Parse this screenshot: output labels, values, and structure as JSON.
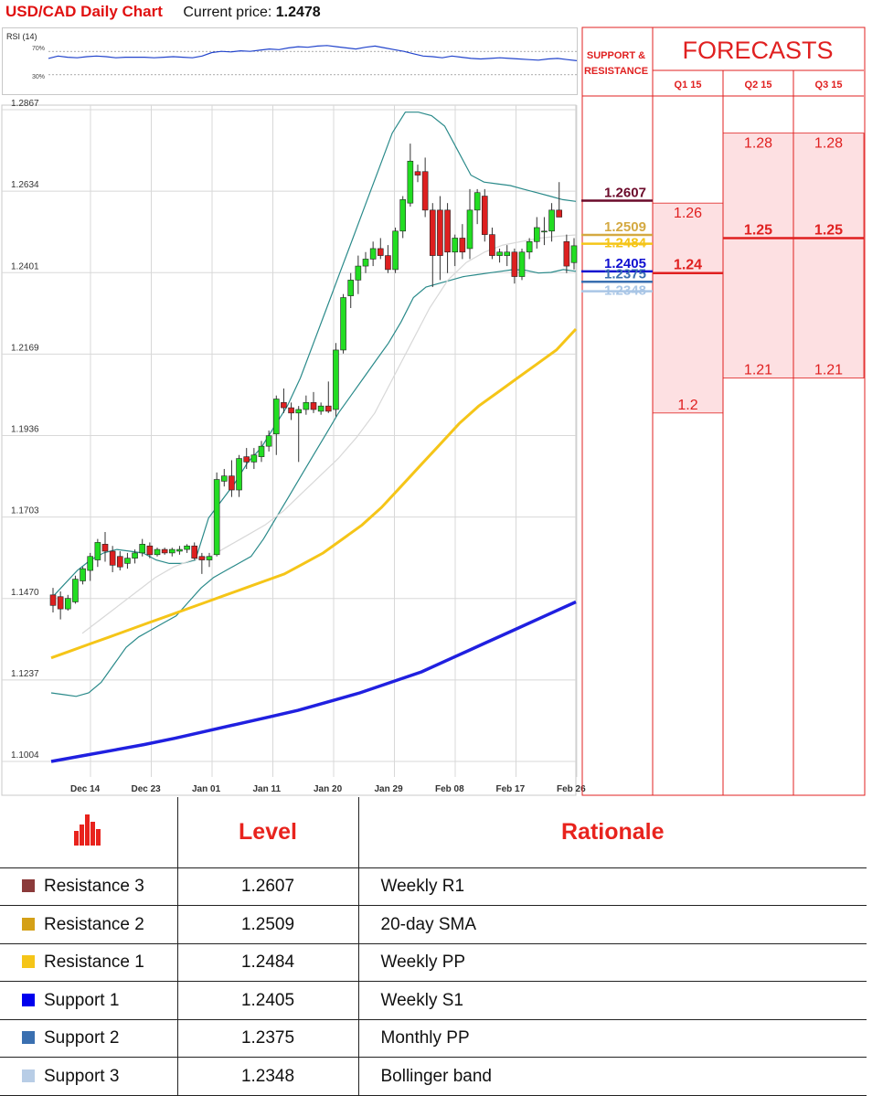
{
  "header": {
    "title": "USD/CAD Daily Chart",
    "price_label": "Current price:",
    "price_value": "1.2478"
  },
  "rsi": {
    "label": "RSI (14)",
    "level_high": "70%",
    "level_low": "30%",
    "values": [
      58,
      62,
      60,
      59,
      61,
      62,
      61,
      59,
      60,
      60,
      60,
      59,
      60,
      61,
      60,
      59,
      62,
      68,
      70,
      69,
      71,
      70,
      72,
      74,
      73,
      76,
      78,
      77,
      79,
      80,
      78,
      76,
      74,
      77,
      79,
      76,
      73,
      70,
      66,
      62,
      61,
      59,
      62,
      60,
      58,
      57,
      58,
      59,
      58,
      57,
      56,
      55,
      57,
      58,
      56,
      54
    ]
  },
  "chart_data": {
    "type": "candlestick",
    "title": "USD/CAD Daily Chart",
    "ylim": [
      1.1004,
      1.2867
    ],
    "y_ticks": [
      "1.2867",
      "1.2634",
      "1.2401",
      "1.2169",
      "1.1936",
      "1.1703",
      "1.1470",
      "1.1237",
      "1.1004"
    ],
    "x_ticks": [
      "Dec 14",
      "Dec 23",
      "Jan 01",
      "Jan 11",
      "Jan 20",
      "Jan 29",
      "Feb 08",
      "Feb 17",
      "Feb 26"
    ],
    "candles": [
      {
        "o": 1.148,
        "h": 1.15,
        "l": 1.143,
        "c": 1.145
      },
      {
        "o": 1.1475,
        "h": 1.149,
        "l": 1.141,
        "c": 1.144
      },
      {
        "o": 1.144,
        "h": 1.148,
        "l": 1.1435,
        "c": 1.147
      },
      {
        "o": 1.146,
        "h": 1.1535,
        "l": 1.1455,
        "c": 1.1525
      },
      {
        "o": 1.152,
        "h": 1.156,
        "l": 1.151,
        "c": 1.1555
      },
      {
        "o": 1.155,
        "h": 1.16,
        "l": 1.152,
        "c": 1.159
      },
      {
        "o": 1.158,
        "h": 1.164,
        "l": 1.156,
        "c": 1.163
      },
      {
        "o": 1.1625,
        "h": 1.166,
        "l": 1.1575,
        "c": 1.1605
      },
      {
        "o": 1.1605,
        "h": 1.162,
        "l": 1.1545,
        "c": 1.1565
      },
      {
        "o": 1.159,
        "h": 1.1605,
        "l": 1.155,
        "c": 1.156
      },
      {
        "o": 1.157,
        "h": 1.16,
        "l": 1.1555,
        "c": 1.1585
      },
      {
        "o": 1.1585,
        "h": 1.161,
        "l": 1.157,
        "c": 1.16
      },
      {
        "o": 1.16,
        "h": 1.164,
        "l": 1.159,
        "c": 1.1625
      },
      {
        "o": 1.162,
        "h": 1.163,
        "l": 1.1585,
        "c": 1.1595
      },
      {
        "o": 1.1595,
        "h": 1.1615,
        "l": 1.159,
        "c": 1.161
      },
      {
        "o": 1.161,
        "h": 1.1615,
        "l": 1.1595,
        "c": 1.16
      },
      {
        "o": 1.16,
        "h": 1.1615,
        "l": 1.159,
        "c": 1.161
      },
      {
        "o": 1.1605,
        "h": 1.162,
        "l": 1.1595,
        "c": 1.161
      },
      {
        "o": 1.161,
        "h": 1.1625,
        "l": 1.16,
        "c": 1.162
      },
      {
        "o": 1.162,
        "h": 1.163,
        "l": 1.158,
        "c": 1.1585
      },
      {
        "o": 1.159,
        "h": 1.16,
        "l": 1.154,
        "c": 1.158
      },
      {
        "o": 1.158,
        "h": 1.16,
        "l": 1.156,
        "c": 1.159
      },
      {
        "o": 1.1595,
        "h": 1.183,
        "l": 1.159,
        "c": 1.181
      },
      {
        "o": 1.1805,
        "h": 1.184,
        "l": 1.179,
        "c": 1.182
      },
      {
        "o": 1.182,
        "h": 1.1865,
        "l": 1.176,
        "c": 1.178
      },
      {
        "o": 1.178,
        "h": 1.188,
        "l": 1.176,
        "c": 1.187
      },
      {
        "o": 1.1875,
        "h": 1.19,
        "l": 1.184,
        "c": 1.186
      },
      {
        "o": 1.186,
        "h": 1.19,
        "l": 1.184,
        "c": 1.188
      },
      {
        "o": 1.1875,
        "h": 1.192,
        "l": 1.186,
        "c": 1.1905
      },
      {
        "o": 1.1905,
        "h": 1.195,
        "l": 1.189,
        "c": 1.1935
      },
      {
        "o": 1.194,
        "h": 1.205,
        "l": 1.188,
        "c": 1.204
      },
      {
        "o": 1.203,
        "h": 1.207,
        "l": 1.2,
        "c": 1.2015
      },
      {
        "o": 1.2015,
        "h": 1.203,
        "l": 1.198,
        "c": 1.2
      },
      {
        "o": 1.2,
        "h": 1.202,
        "l": 1.186,
        "c": 1.201
      },
      {
        "o": 1.201,
        "h": 1.205,
        "l": 1.1995,
        "c": 1.203
      },
      {
        "o": 1.203,
        "h": 1.206,
        "l": 1.2,
        "c": 1.201
      },
      {
        "o": 1.2005,
        "h": 1.203,
        "l": 1.1995,
        "c": 1.202
      },
      {
        "o": 1.202,
        "h": 1.209,
        "l": 1.2,
        "c": 1.2005
      },
      {
        "o": 1.201,
        "h": 1.22,
        "l": 1.199,
        "c": 1.218
      },
      {
        "o": 1.218,
        "h": 1.234,
        "l": 1.217,
        "c": 1.233
      },
      {
        "o": 1.2335,
        "h": 1.24,
        "l": 1.23,
        "c": 1.238
      },
      {
        "o": 1.238,
        "h": 1.245,
        "l": 1.234,
        "c": 1.242
      },
      {
        "o": 1.242,
        "h": 1.246,
        "l": 1.24,
        "c": 1.244
      },
      {
        "o": 1.244,
        "h": 1.249,
        "l": 1.242,
        "c": 1.247
      },
      {
        "o": 1.247,
        "h": 1.25,
        "l": 1.244,
        "c": 1.245
      },
      {
        "o": 1.245,
        "h": 1.248,
        "l": 1.24,
        "c": 1.241
      },
      {
        "o": 1.241,
        "h": 1.253,
        "l": 1.24,
        "c": 1.252
      },
      {
        "o": 1.252,
        "h": 1.262,
        "l": 1.25,
        "c": 1.261
      },
      {
        "o": 1.26,
        "h": 1.277,
        "l": 1.259,
        "c": 1.272
      },
      {
        "o": 1.269,
        "h": 1.271,
        "l": 1.266,
        "c": 1.268
      },
      {
        "o": 1.269,
        "h": 1.273,
        "l": 1.256,
        "c": 1.258
      },
      {
        "o": 1.258,
        "h": 1.26,
        "l": 1.236,
        "c": 1.245
      },
      {
        "o": 1.258,
        "h": 1.262,
        "l": 1.238,
        "c": 1.245
      },
      {
        "o": 1.258,
        "h": 1.26,
        "l": 1.24,
        "c": 1.246
      },
      {
        "o": 1.246,
        "h": 1.251,
        "l": 1.242,
        "c": 1.25
      },
      {
        "o": 1.25,
        "h": 1.254,
        "l": 1.244,
        "c": 1.246
      },
      {
        "o": 1.247,
        "h": 1.264,
        "l": 1.244,
        "c": 1.258
      },
      {
        "o": 1.258,
        "h": 1.264,
        "l": 1.254,
        "c": 1.263
      },
      {
        "o": 1.262,
        "h": 1.264,
        "l": 1.249,
        "c": 1.251
      },
      {
        "o": 1.251,
        "h": 1.253,
        "l": 1.244,
        "c": 1.245
      },
      {
        "o": 1.245,
        "h": 1.247,
        "l": 1.243,
        "c": 1.246
      },
      {
        "o": 1.245,
        "h": 1.248,
        "l": 1.242,
        "c": 1.246
      },
      {
        "o": 1.246,
        "h": 1.247,
        "l": 1.237,
        "c": 1.239
      },
      {
        "o": 1.239,
        "h": 1.247,
        "l": 1.238,
        "c": 1.246
      },
      {
        "o": 1.246,
        "h": 1.25,
        "l": 1.244,
        "c": 1.249
      },
      {
        "o": 1.249,
        "h": 1.256,
        "l": 1.247,
        "c": 1.253
      },
      {
        "o": 1.252,
        "h": 1.256,
        "l": 1.248,
        "c": 1.252
      },
      {
        "o": 1.252,
        "h": 1.26,
        "l": 1.249,
        "c": 1.258
      },
      {
        "o": 1.258,
        "h": 1.266,
        "l": 1.256,
        "c": 1.256
      },
      {
        "o": 1.249,
        "h": 1.251,
        "l": 1.24,
        "c": 1.242
      },
      {
        "o": 1.243,
        "h": 1.25,
        "l": 1.241,
        "c": 1.2478
      }
    ],
    "series": [
      {
        "color": "#2a8a8a",
        "values": [
          1.12,
          1.1195,
          1.119,
          1.12,
          1.123,
          1.128,
          1.133,
          1.136,
          1.138,
          1.14,
          1.142,
          1.146,
          1.15,
          1.153,
          1.155,
          1.157,
          1.159,
          1.164,
          1.17,
          1.176,
          1.182,
          1.188,
          1.194,
          1.2,
          1.205,
          1.21,
          1.215,
          1.22,
          1.226,
          1.233,
          1.236,
          1.237,
          1.238,
          1.239,
          1.2395,
          1.24,
          1.2405,
          1.241,
          1.2408,
          1.24,
          1.2402,
          1.241,
          1.2405
        ]
      },
      {
        "color": "#2a8a8a",
        "values": [
          1.147,
          1.151,
          1.155,
          1.158,
          1.16,
          1.161,
          1.1605,
          1.16,
          1.158,
          1.157,
          1.157,
          1.158,
          1.17,
          1.175,
          1.18,
          1.186,
          1.19,
          1.196,
          1.202,
          1.21,
          1.22,
          1.23,
          1.24,
          1.25,
          1.26,
          1.27,
          1.28,
          1.286,
          1.286,
          1.285,
          1.282,
          1.275,
          1.268,
          1.266,
          1.2655,
          1.265,
          1.264,
          1.263,
          1.262,
          1.261,
          1.2605
        ]
      },
      {
        "color": "#d8d8d8",
        "values": [
          1.137,
          1.141,
          1.145,
          1.149,
          1.153,
          1.156,
          1.158,
          1.159,
          1.162,
          1.165,
          1.168,
          1.172,
          1.177,
          1.182,
          1.187,
          1.193,
          1.2,
          1.21,
          1.22,
          1.23,
          1.238,
          1.243,
          1.246,
          1.248,
          1.249,
          1.25,
          1.2505,
          1.2509
        ]
      },
      {
        "color": "#f5c518",
        "values": [
          1.13,
          1.132,
          1.134,
          1.136,
          1.138,
          1.14,
          1.142,
          1.144,
          1.146,
          1.148,
          1.15,
          1.152,
          1.154,
          1.157,
          1.16,
          1.164,
          1.168,
          1.173,
          1.179,
          1.185,
          1.191,
          1.197,
          1.202,
          1.206,
          1.21,
          1.214,
          1.218,
          1.224
        ]
      },
      {
        "color": "#2020e0",
        "values": [
          1.1004,
          1.102,
          1.1036,
          1.1052,
          1.107,
          1.109,
          1.111,
          1.113,
          1.115,
          1.1175,
          1.12,
          1.123,
          1.126,
          1.13,
          1.134,
          1.138,
          1.142,
          1.146
        ]
      }
    ],
    "levels": [
      {
        "value": 1.2607,
        "label": "1.2607",
        "color": "#6b0a2a"
      },
      {
        "value": 1.2509,
        "label": "1.2509",
        "color": "#d4a942"
      },
      {
        "value": 1.2484,
        "label": "1.2484",
        "color": "#f5c518"
      },
      {
        "value": 1.2405,
        "label": "1.2405",
        "color": "#1010d0"
      },
      {
        "value": 1.2375,
        "label": "1.2375",
        "color": "#3a6fb0"
      },
      {
        "value": 1.2348,
        "label": "1.2348",
        "color": "#a9c6e6"
      }
    ]
  },
  "forecasts": {
    "title": "FORECASTS",
    "sr_label": "SUPPORT & RESISTANCE",
    "quarters": [
      "Q1 15",
      "Q2 15",
      "Q3 15"
    ],
    "columns": [
      {
        "high": 1.26,
        "mid": 1.24,
        "low": 1.2,
        "high_label": "1.26",
        "mid_label": "1.24",
        "low_label": "1.2"
      },
      {
        "high": 1.28,
        "mid": 1.25,
        "low": 1.21,
        "high_label": "1.28",
        "mid_label": "1.25",
        "low_label": "1.21"
      },
      {
        "high": 1.28,
        "mid": 1.25,
        "low": 1.21,
        "high_label": "1.28",
        "mid_label": "1.25",
        "low_label": "1.21"
      }
    ]
  },
  "table": {
    "header_level": "Level",
    "header_rationale": "Rationale",
    "rows": [
      {
        "name": "Resistance 3",
        "level": "1.2607",
        "rationale": "Weekly R1",
        "color": "#8b3a3a"
      },
      {
        "name": "Resistance 2",
        "level": "1.2509",
        "rationale": "20-day SMA",
        "color": "#d4a017"
      },
      {
        "name": "Resistance 1",
        "level": "1.2484",
        "rationale": "Weekly PP",
        "color": "#f5c518"
      },
      {
        "name": "Support 1",
        "level": "1.2405",
        "rationale": "Weekly S1",
        "color": "#0000ee"
      },
      {
        "name": "Support 2",
        "level": "1.2375",
        "rationale": "Monthly PP",
        "color": "#3a6fb0"
      },
      {
        "name": "Support 3",
        "level": "1.2348",
        "rationale": "Bollinger band",
        "color": "#b8cde6"
      }
    ]
  }
}
